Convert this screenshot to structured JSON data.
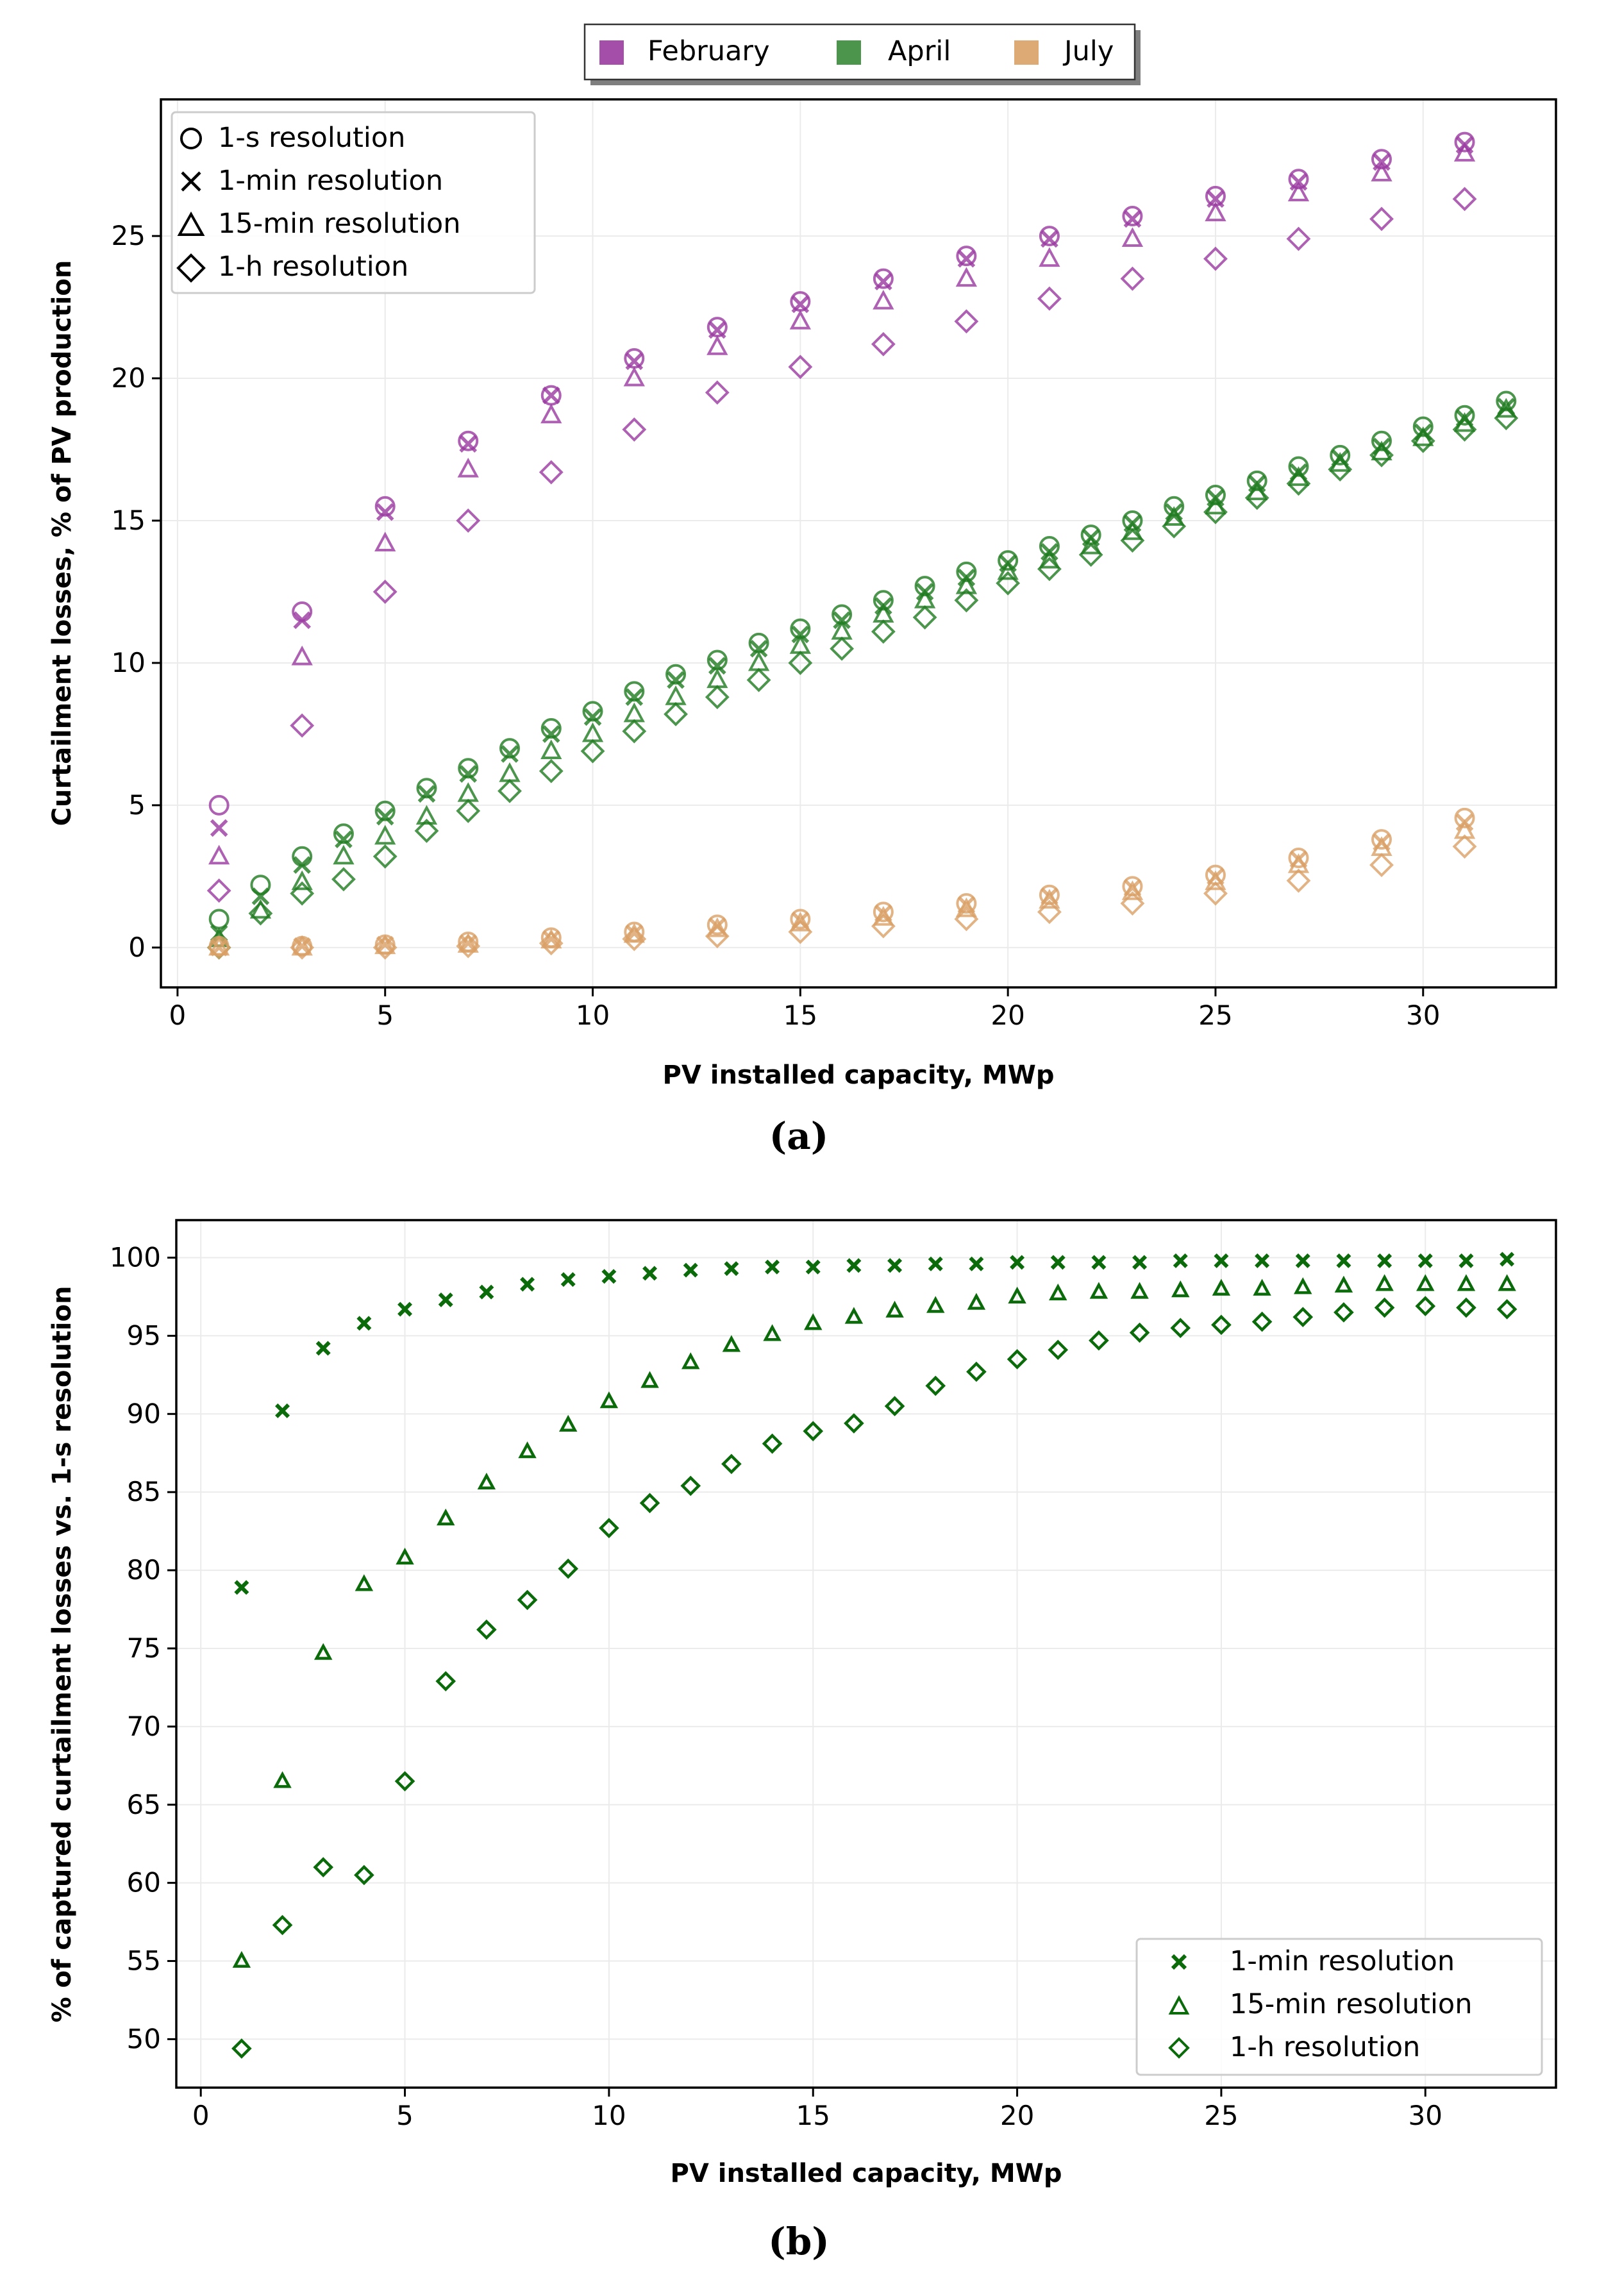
{
  "chart_data": [
    {
      "type": "scatter",
      "panel_label": "(a)",
      "xlabel": "PV installed capacity, MWp",
      "ylabel": "Curtailment losses, % of PV production",
      "xlim": [
        -0.4,
        33.2
      ],
      "ylim": [
        -1.4,
        29.8
      ],
      "xticks": [
        0,
        5,
        10,
        15,
        20,
        25,
        30
      ],
      "yticks": [
        0,
        5,
        10,
        15,
        20,
        25
      ],
      "grid": true,
      "legend_months": {
        "placement": "top-center, above plot",
        "entries": [
          "February",
          "April",
          "July"
        ]
      },
      "legend_markers": {
        "placement": "top-left",
        "entries": [
          "1-s resolution",
          "1-min resolution",
          "15-min resolution",
          "1-h resolution"
        ]
      },
      "series": [
        {
          "month": "February",
          "resolution": "1-s",
          "marker": "circle",
          "x": [
            1,
            3,
            5,
            7,
            9,
            11,
            13,
            15,
            17,
            19,
            21,
            23,
            25,
            27,
            29,
            31
          ],
          "y": [
            5.0,
            11.8,
            15.5,
            17.8,
            19.4,
            20.7,
            21.8,
            22.7,
            23.5,
            24.3,
            25.0,
            25.7,
            26.4,
            27.0,
            27.7,
            28.3
          ]
        },
        {
          "month": "February",
          "resolution": "1-min",
          "marker": "x",
          "x": [
            1,
            3,
            5,
            7,
            9,
            11,
            13,
            15,
            17,
            19,
            21,
            23,
            25,
            27,
            29,
            31
          ],
          "y": [
            4.2,
            11.5,
            15.3,
            17.7,
            19.4,
            20.6,
            21.7,
            22.6,
            23.4,
            24.2,
            24.9,
            25.6,
            26.3,
            26.9,
            27.6,
            28.2
          ]
        },
        {
          "month": "February",
          "resolution": "15-min",
          "marker": "triangle",
          "x": [
            1,
            3,
            5,
            7,
            9,
            11,
            13,
            15,
            17,
            19,
            21,
            23,
            25,
            27,
            29,
            31
          ],
          "y": [
            3.2,
            10.2,
            14.2,
            16.8,
            18.7,
            20.0,
            21.1,
            22.0,
            22.7,
            23.5,
            24.2,
            24.9,
            25.8,
            26.5,
            27.2,
            27.9
          ]
        },
        {
          "month": "February",
          "resolution": "1-h",
          "marker": "diamond",
          "x": [
            1,
            3,
            5,
            7,
            9,
            11,
            13,
            15,
            17,
            19,
            21,
            23,
            25,
            27,
            29,
            31
          ],
          "y": [
            2.0,
            7.8,
            12.5,
            15.0,
            16.7,
            18.2,
            19.5,
            20.4,
            21.2,
            22.0,
            22.8,
            23.5,
            24.2,
            24.9,
            25.6,
            26.3
          ]
        },
        {
          "month": "April",
          "resolution": "1-s",
          "marker": "circle",
          "x": [
            1,
            2,
            3,
            4,
            5,
            6,
            7,
            8,
            9,
            10,
            11,
            12,
            13,
            14,
            15,
            16,
            17,
            18,
            19,
            20,
            21,
            22,
            23,
            24,
            25,
            26,
            27,
            28,
            29,
            30,
            31,
            32
          ],
          "y": [
            1.0,
            2.2,
            3.2,
            4.0,
            4.8,
            5.6,
            6.3,
            7.0,
            7.7,
            8.3,
            9.0,
            9.6,
            10.1,
            10.7,
            11.2,
            11.7,
            12.2,
            12.7,
            13.2,
            13.6,
            14.1,
            14.5,
            15.0,
            15.5,
            15.9,
            16.4,
            16.9,
            17.3,
            17.8,
            18.3,
            18.7,
            19.2
          ]
        },
        {
          "month": "April",
          "resolution": "1-min",
          "marker": "x",
          "x": [
            1,
            2,
            3,
            4,
            5,
            6,
            7,
            8,
            9,
            10,
            11,
            12,
            13,
            14,
            15,
            16,
            17,
            18,
            19,
            20,
            21,
            22,
            23,
            24,
            25,
            26,
            27,
            28,
            29,
            30,
            31,
            32
          ],
          "y": [
            0.5,
            1.8,
            2.9,
            3.8,
            4.6,
            5.4,
            6.1,
            6.8,
            7.5,
            8.1,
            8.8,
            9.4,
            9.9,
            10.5,
            11.0,
            11.5,
            12.0,
            12.5,
            13.0,
            13.5,
            13.9,
            14.4,
            14.9,
            15.3,
            15.8,
            16.3,
            16.7,
            17.2,
            17.6,
            18.1,
            18.6,
            19.0
          ]
        },
        {
          "month": "April",
          "resolution": "15-min",
          "marker": "triangle",
          "x": [
            1,
            2,
            3,
            4,
            5,
            6,
            7,
            8,
            9,
            10,
            11,
            12,
            13,
            14,
            15,
            16,
            17,
            18,
            19,
            20,
            21,
            22,
            23,
            24,
            25,
            26,
            27,
            28,
            29,
            30,
            31,
            32
          ],
          "y": [
            0.3,
            1.3,
            2.3,
            3.2,
            3.9,
            4.6,
            5.4,
            6.1,
            6.9,
            7.5,
            8.2,
            8.8,
            9.4,
            10.0,
            10.6,
            11.1,
            11.7,
            12.2,
            12.7,
            13.2,
            13.6,
            14.1,
            14.6,
            15.1,
            15.5,
            16.0,
            16.5,
            17.0,
            17.4,
            17.9,
            18.4,
            18.9
          ]
        },
        {
          "month": "April",
          "resolution": "1-h",
          "marker": "diamond",
          "x": [
            1,
            2,
            3,
            4,
            5,
            6,
            7,
            8,
            9,
            10,
            11,
            12,
            13,
            14,
            15,
            16,
            17,
            18,
            19,
            20,
            21,
            22,
            23,
            24,
            25,
            26,
            27,
            28,
            29,
            30,
            31,
            32
          ],
          "y": [
            0.0,
            1.2,
            1.9,
            2.4,
            3.2,
            4.1,
            4.8,
            5.5,
            6.2,
            6.9,
            7.6,
            8.2,
            8.8,
            9.4,
            10.0,
            10.5,
            11.1,
            11.6,
            12.2,
            12.8,
            13.3,
            13.8,
            14.3,
            14.8,
            15.3,
            15.8,
            16.3,
            16.8,
            17.3,
            17.8,
            18.2,
            18.6
          ]
        },
        {
          "month": "July",
          "resolution": "1-s",
          "marker": "circle",
          "x": [
            1,
            3,
            5,
            7,
            9,
            11,
            13,
            15,
            17,
            19,
            21,
            23,
            25,
            27,
            29,
            31
          ],
          "y": [
            0.05,
            0.05,
            0.1,
            0.2,
            0.35,
            0.55,
            0.8,
            1.0,
            1.25,
            1.55,
            1.85,
            2.15,
            2.55,
            3.15,
            3.8,
            4.55
          ]
        },
        {
          "month": "July",
          "resolution": "1-min",
          "marker": "x",
          "x": [
            1,
            3,
            5,
            7,
            9,
            11,
            13,
            15,
            17,
            19,
            21,
            23,
            25,
            27,
            29,
            31
          ],
          "y": [
            0.0,
            0.05,
            0.1,
            0.15,
            0.3,
            0.5,
            0.75,
            0.95,
            1.2,
            1.5,
            1.8,
            2.1,
            2.5,
            3.1,
            3.7,
            4.4
          ]
        },
        {
          "month": "July",
          "resolution": "15-min",
          "marker": "triangle",
          "x": [
            1,
            3,
            5,
            7,
            9,
            11,
            13,
            15,
            17,
            19,
            21,
            23,
            25,
            27,
            29,
            31
          ],
          "y": [
            0.0,
            0.0,
            0.05,
            0.1,
            0.25,
            0.45,
            0.65,
            0.85,
            1.05,
            1.35,
            1.65,
            1.95,
            2.3,
            2.9,
            3.5,
            4.1
          ]
        },
        {
          "month": "July",
          "resolution": "1-h",
          "marker": "diamond",
          "x": [
            1,
            3,
            5,
            7,
            9,
            11,
            13,
            15,
            17,
            19,
            21,
            23,
            25,
            27,
            29,
            31
          ],
          "y": [
            0.0,
            0.0,
            0.0,
            0.05,
            0.15,
            0.3,
            0.4,
            0.55,
            0.75,
            1.0,
            1.25,
            1.55,
            1.9,
            2.35,
            2.9,
            3.55
          ]
        }
      ]
    },
    {
      "type": "scatter",
      "panel_label": "(b)",
      "xlabel": "PV installed capacity, MWp",
      "ylabel": "% of captured curtailment losses vs. 1-s resolution",
      "xlim": [
        -0.6,
        33.2
      ],
      "ylim": [
        46.9,
        102.4
      ],
      "xticks": [
        0,
        5,
        10,
        15,
        20,
        25,
        30
      ],
      "yticks": [
        50,
        55,
        60,
        65,
        70,
        75,
        80,
        85,
        90,
        95,
        100
      ],
      "grid": true,
      "legend": {
        "placement": "bottom-right",
        "entries": [
          "1-min resolution",
          "15-min resolution",
          "1-h resolution"
        ]
      },
      "series": [
        {
          "name": "1-min resolution",
          "marker": "x",
          "x": [
            1,
            2,
            3,
            4,
            5,
            6,
            7,
            8,
            9,
            10,
            11,
            12,
            13,
            14,
            15,
            16,
            17,
            18,
            19,
            20,
            21,
            22,
            23,
            24,
            25,
            26,
            27,
            28,
            29,
            30,
            31,
            32
          ],
          "y": [
            78.9,
            90.2,
            94.2,
            95.8,
            96.7,
            97.3,
            97.8,
            98.3,
            98.6,
            98.8,
            99.0,
            99.2,
            99.3,
            99.4,
            99.4,
            99.5,
            99.5,
            99.6,
            99.6,
            99.7,
            99.7,
            99.7,
            99.7,
            99.8,
            99.8,
            99.8,
            99.8,
            99.8,
            99.8,
            99.8,
            99.8,
            99.9
          ]
        },
        {
          "name": "15-min resolution",
          "marker": "triangle",
          "x": [
            1,
            2,
            3,
            4,
            5,
            6,
            7,
            8,
            9,
            10,
            11,
            12,
            13,
            14,
            15,
            16,
            17,
            18,
            19,
            20,
            21,
            22,
            23,
            24,
            25,
            26,
            27,
            28,
            29,
            30,
            31,
            32
          ],
          "y": [
            55.0,
            66.5,
            74.7,
            79.1,
            80.8,
            83.3,
            85.6,
            87.6,
            89.3,
            90.8,
            92.1,
            93.3,
            94.4,
            95.1,
            95.8,
            96.2,
            96.6,
            96.9,
            97.1,
            97.5,
            97.7,
            97.8,
            97.8,
            97.9,
            98.0,
            98.0,
            98.1,
            98.2,
            98.3,
            98.3,
            98.3,
            98.3
          ]
        },
        {
          "name": "1-h resolution",
          "marker": "diamond",
          "x": [
            1,
            2,
            3,
            4,
            5,
            6,
            7,
            8,
            9,
            10,
            11,
            12,
            13,
            14,
            15,
            16,
            17,
            18,
            19,
            20,
            21,
            22,
            23,
            24,
            25,
            26,
            27,
            28,
            29,
            30,
            31,
            32
          ],
          "y": [
            49.4,
            57.3,
            61.0,
            60.5,
            66.5,
            72.9,
            76.2,
            78.1,
            80.1,
            82.7,
            84.3,
            85.4,
            86.8,
            88.1,
            88.9,
            89.4,
            90.5,
            91.8,
            92.7,
            93.5,
            94.1,
            94.7,
            95.2,
            95.5,
            95.7,
            95.9,
            96.2,
            96.5,
            96.8,
            96.9,
            96.8,
            96.7
          ]
        }
      ]
    }
  ],
  "colors": {
    "February": "#9a3aa0",
    "April": "#1f7a1f",
    "July": "#d9a066",
    "panel_b": "#0b6b0b"
  }
}
